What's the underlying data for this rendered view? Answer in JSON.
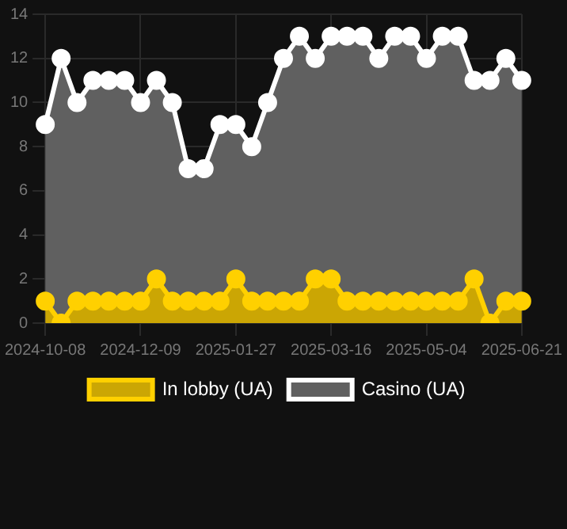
{
  "chart_data": {
    "type": "area",
    "categories": [
      "2024-10-08",
      null,
      null,
      null,
      null,
      null,
      "2024-12-09",
      null,
      null,
      null,
      null,
      null,
      "2025-01-27",
      null,
      null,
      null,
      null,
      null,
      "2025-03-16",
      null,
      null,
      null,
      null,
      null,
      "2025-05-04",
      null,
      null,
      null,
      null,
      null,
      "2025-06-21"
    ],
    "series": [
      {
        "name": "In lobby (UA)",
        "color": "#ffd000",
        "values": [
          1,
          0,
          1,
          1,
          1,
          1,
          1,
          2,
          1,
          1,
          1,
          1,
          2,
          1,
          1,
          1,
          1,
          2,
          2,
          1,
          1,
          1,
          1,
          1,
          1,
          1,
          1,
          2,
          0,
          1,
          1
        ]
      },
      {
        "name": "Casino (UA)",
        "color": "#ffffff",
        "values": [
          9,
          12,
          10,
          11,
          11,
          11,
          10,
          11,
          10,
          7,
          7,
          9,
          9,
          8,
          10,
          12,
          13,
          12,
          13,
          13,
          13,
          12,
          13,
          13,
          12,
          13,
          13,
          11,
          11,
          12,
          11
        ]
      }
    ],
    "ylim": [
      0,
      14
    ],
    "yticks": [
      0,
      2,
      4,
      6,
      8,
      10,
      12,
      14
    ],
    "grid": true,
    "legend": "bottom",
    "marker": "circle"
  }
}
